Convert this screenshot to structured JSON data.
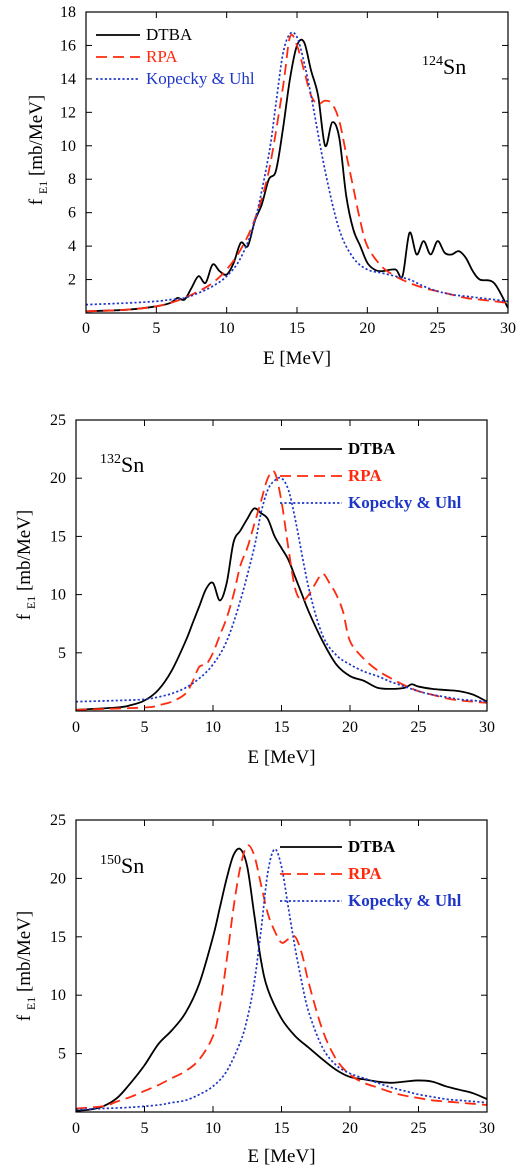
{
  "chart_data": [
    {
      "type": "line",
      "nucleus_mass": "124",
      "nucleus_symbol": "Sn",
      "xlabel": "E [MeV]",
      "ylabel_main": "f",
      "ylabel_sub": "E1",
      "ylabel_unit": "[mb/MeV]",
      "xlim": [
        0,
        30
      ],
      "ylim": [
        0,
        18
      ],
      "xticks": [
        0,
        5,
        10,
        15,
        20,
        25,
        30
      ],
      "yticks": [
        2,
        4,
        6,
        8,
        10,
        12,
        14,
        16,
        18
      ],
      "legend_bold": false,
      "series": [
        {
          "name": "DTBA",
          "color": "#000000",
          "style": "solid",
          "x": [
            0,
            3,
            5,
            6,
            6.5,
            7,
            7.5,
            8,
            8.5,
            9,
            9.5,
            10,
            10.5,
            11,
            11.5,
            12,
            12.5,
            13,
            13.5,
            14,
            14.5,
            15,
            15.5,
            16,
            16.5,
            17,
            17.5,
            18,
            18.5,
            19,
            19.5,
            20,
            20.5,
            21,
            22,
            22.5,
            23,
            23.5,
            24,
            24.5,
            25,
            25.5,
            26,
            26.5,
            27,
            27.5,
            28,
            29,
            30
          ],
          "y": [
            0.1,
            0.2,
            0.4,
            0.6,
            0.9,
            0.8,
            1.5,
            2.2,
            1.8,
            2.9,
            2.5,
            2.3,
            3.0,
            4.2,
            4.0,
            5.5,
            6.5,
            8.0,
            8.5,
            11.0,
            14.0,
            16.0,
            16.2,
            14.5,
            13.0,
            10.0,
            11.4,
            10.5,
            7.0,
            5.0,
            4.0,
            3.0,
            2.6,
            2.5,
            2.6,
            2.2,
            4.8,
            3.5,
            4.3,
            3.5,
            4.3,
            3.6,
            3.5,
            3.7,
            3.3,
            2.5,
            2.0,
            1.8,
            0.3
          ]
        },
        {
          "name": "RPA",
          "color": "#ff2a0e",
          "style": "dashed",
          "x": [
            0,
            3,
            5,
            6,
            7,
            8,
            9,
            10,
            11,
            12,
            13,
            14,
            14.5,
            15,
            15.5,
            16,
            16.5,
            17,
            17.5,
            18,
            18.5,
            19,
            19.5,
            20,
            21,
            22,
            23,
            24,
            25,
            26,
            27,
            28,
            29,
            30
          ],
          "y": [
            0.1,
            0.2,
            0.4,
            0.6,
            0.9,
            1.3,
            1.8,
            2.6,
            3.8,
            5.6,
            8.5,
            13.5,
            16.5,
            16.0,
            14.5,
            13.0,
            12.5,
            12.7,
            12.5,
            11.5,
            9.5,
            7.5,
            5.5,
            4.0,
            2.8,
            2.2,
            1.8,
            1.5,
            1.3,
            1.1,
            0.9,
            0.8,
            0.7,
            0.6
          ]
        },
        {
          "name": "Kopecky & Uhl",
          "color": "#1e36c8",
          "style": "dotted",
          "x": [
            0,
            3,
            5,
            6,
            7,
            8,
            9,
            10,
            11,
            12,
            13,
            13.5,
            14,
            14.5,
            15,
            15.5,
            16,
            17,
            18,
            19,
            20,
            21,
            22,
            23,
            24,
            25,
            26,
            27,
            28,
            29,
            30
          ],
          "y": [
            0.5,
            0.6,
            0.7,
            0.8,
            0.9,
            1.2,
            1.6,
            2.2,
            3.3,
            5.5,
            9.5,
            12.5,
            15.5,
            16.7,
            16.5,
            15.0,
            13.0,
            8.5,
            5.0,
            3.3,
            2.6,
            2.4,
            2.2,
            2.0,
            1.6,
            1.3,
            1.1,
            1.0,
            0.9,
            0.8,
            0.7
          ]
        }
      ]
    },
    {
      "type": "line",
      "nucleus_mass": "132",
      "nucleus_symbol": "Sn",
      "xlabel": "E [MeV]",
      "ylabel_main": "f",
      "ylabel_sub": "E1",
      "ylabel_unit": "[mb/MeV]",
      "xlim": [
        0,
        30
      ],
      "ylim": [
        0,
        25
      ],
      "xticks": [
        0,
        5,
        10,
        15,
        20,
        25,
        30
      ],
      "yticks": [
        5,
        10,
        15,
        20,
        25
      ],
      "legend_bold": true,
      "series": [
        {
          "name": "DTBA",
          "color": "#000000",
          "style": "solid",
          "x": [
            0,
            3,
            4,
            5,
            6,
            7,
            8,
            8.5,
            9,
            9.5,
            10,
            10.5,
            11,
            11.5,
            12,
            12.5,
            13,
            13.5,
            14,
            14.5,
            15,
            15.5,
            16,
            16.5,
            17,
            18,
            19,
            20,
            21,
            22,
            23,
            24,
            24.5,
            25,
            26,
            27,
            28,
            29,
            30
          ],
          "y": [
            0.1,
            0.3,
            0.5,
            0.9,
            1.8,
            3.5,
            6.0,
            7.5,
            9.0,
            10.5,
            11.0,
            9.5,
            11.0,
            14.5,
            15.5,
            16.5,
            17.4,
            17.0,
            16.5,
            15.0,
            14.0,
            13.0,
            11.5,
            10.0,
            8.5,
            6.0,
            4.0,
            3.0,
            2.6,
            2.0,
            1.9,
            2.0,
            2.3,
            2.1,
            1.9,
            1.8,
            1.7,
            1.4,
            0.8
          ]
        },
        {
          "name": "RPA",
          "color": "#ff2a0e",
          "style": "dashed",
          "x": [
            0,
            5,
            6,
            7,
            8,
            8.5,
            9,
            9.5,
            10,
            10.5,
            11,
            11.5,
            12,
            12.5,
            13,
            13.5,
            14,
            14.5,
            15,
            15.5,
            16,
            16.5,
            17,
            17.5,
            18,
            18.5,
            19,
            19.5,
            20,
            21,
            22,
            23,
            24,
            25,
            26,
            27,
            28,
            29,
            30
          ],
          "y": [
            0.1,
            0.3,
            0.5,
            0.8,
            1.5,
            2.5,
            3.8,
            4.0,
            5.0,
            6.5,
            8.0,
            10.0,
            12.5,
            14.0,
            16.0,
            18.0,
            20.0,
            20.5,
            18.0,
            14.0,
            10.5,
            9.5,
            10.0,
            11.0,
            11.8,
            11.0,
            10.0,
            8.5,
            6.0,
            4.5,
            3.5,
            2.8,
            2.2,
            1.7,
            1.4,
            1.1,
            0.9,
            0.8,
            0.7
          ]
        },
        {
          "name": "Kopecky & Uhl",
          "color": "#1e36c8",
          "style": "dotted",
          "x": [
            0,
            3,
            5,
            6,
            7,
            8,
            9,
            10,
            11,
            12,
            13,
            13.5,
            14,
            14.5,
            15,
            15.5,
            16,
            17,
            18,
            19,
            20,
            21,
            22,
            23,
            24,
            25,
            26,
            27,
            28,
            29,
            30
          ],
          "y": [
            0.8,
            0.9,
            1.0,
            1.2,
            1.5,
            2.0,
            2.8,
            4.0,
            6.0,
            9.5,
            14.0,
            17.0,
            19.0,
            19.8,
            20.0,
            19.0,
            16.5,
            10.5,
            6.5,
            4.8,
            4.0,
            3.4,
            3.0,
            2.5,
            2.1,
            1.7,
            1.4,
            1.2,
            1.0,
            0.9,
            0.8
          ]
        }
      ]
    },
    {
      "type": "line",
      "nucleus_mass": "150",
      "nucleus_symbol": "Sn",
      "xlabel": "E [MeV]",
      "ylabel_main": "f",
      "ylabel_sub": "E1",
      "ylabel_unit": "[mb/MeV]",
      "xlim": [
        0,
        30
      ],
      "ylim": [
        0,
        25
      ],
      "xticks": [
        0,
        5,
        10,
        15,
        20,
        25,
        30
      ],
      "yticks": [
        5,
        10,
        15,
        20,
        25
      ],
      "legend_bold": true,
      "series": [
        {
          "name": "DTBA",
          "color": "#000000",
          "style": "solid",
          "x": [
            0,
            1,
            2,
            3,
            4,
            5,
            6,
            7,
            8,
            9,
            10,
            10.5,
            11,
            11.5,
            12,
            12.5,
            13,
            13.5,
            14,
            15,
            16,
            17,
            18,
            19,
            20,
            21,
            22,
            23,
            24,
            25,
            26,
            27,
            28,
            29,
            30
          ],
          "y": [
            0.1,
            0.2,
            0.5,
            1.2,
            2.5,
            4.0,
            5.8,
            7.0,
            8.5,
            11.0,
            15.0,
            17.5,
            20.0,
            22.0,
            22.5,
            21.0,
            17.0,
            13.0,
            10.5,
            8.0,
            6.5,
            5.5,
            4.5,
            3.6,
            3.0,
            2.8,
            2.6,
            2.5,
            2.6,
            2.7,
            2.6,
            2.2,
            1.9,
            1.6,
            1.1
          ]
        },
        {
          "name": "RPA",
          "color": "#ff2a0e",
          "style": "dashed",
          "x": [
            0,
            2,
            3,
            4,
            5,
            6,
            7,
            8,
            9,
            10,
            10.5,
            11,
            11.5,
            12,
            12.5,
            13,
            13.5,
            14,
            14.5,
            15,
            15.5,
            16,
            16.5,
            17,
            18,
            19,
            20,
            21,
            22,
            23,
            24,
            25,
            26,
            27,
            28,
            29,
            30
          ],
          "y": [
            0.3,
            0.5,
            0.9,
            1.3,
            1.8,
            2.3,
            2.9,
            3.5,
            4.5,
            6.5,
            9.0,
            13.0,
            17.5,
            21.0,
            22.8,
            22.0,
            19.5,
            17.0,
            15.5,
            14.5,
            14.8,
            15.0,
            13.5,
            11.0,
            7.0,
            4.5,
            3.2,
            2.5,
            2.1,
            1.7,
            1.4,
            1.2,
            1.0,
            0.9,
            0.8,
            0.7,
            0.6
          ]
        },
        {
          "name": "Kopecky & Uhl",
          "color": "#1e36c8",
          "style": "dotted",
          "x": [
            0,
            2,
            4,
            6,
            7,
            8,
            9,
            10,
            11,
            12,
            12.5,
            13,
            13.5,
            14,
            14.5,
            15,
            15.5,
            16,
            16.5,
            17,
            18,
            19,
            20,
            21,
            22,
            23,
            24,
            25,
            26,
            27,
            28,
            29,
            30
          ],
          "y": [
            0.2,
            0.3,
            0.4,
            0.6,
            0.8,
            1.0,
            1.5,
            2.2,
            3.5,
            6.0,
            8.0,
            11.0,
            15.5,
            20.5,
            22.5,
            21.0,
            17.5,
            14.0,
            11.0,
            8.5,
            5.5,
            4.0,
            3.3,
            2.9,
            2.5,
            2.1,
            1.8,
            1.5,
            1.3,
            1.1,
            1.0,
            0.9,
            0.8
          ]
        }
      ]
    }
  ]
}
